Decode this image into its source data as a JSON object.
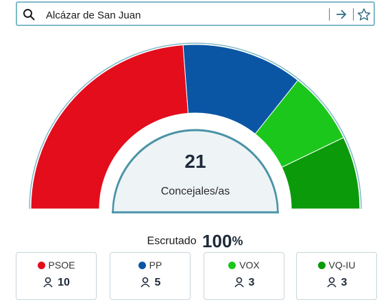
{
  "search": {
    "value": "Alcázar de San Juan",
    "search_icon": "search-icon",
    "go_icon": "arrow-right-icon",
    "favorite_icon": "star-icon"
  },
  "chart_data": {
    "type": "hemicycle",
    "total_seats": 21,
    "center_label": "Concejales/as",
    "series": [
      {
        "name": "PSOE",
        "value": 10,
        "color": "#e30d1c"
      },
      {
        "name": "PP",
        "value": 5,
        "color": "#0b56a4"
      },
      {
        "name": "VOX",
        "value": 3,
        "color": "#1bc71b"
      },
      {
        "name": "VQ-IU",
        "value": 3,
        "color": "#0a9a0a"
      }
    ]
  },
  "hemicycle": {
    "total": "21",
    "label": "Concejales/as"
  },
  "scrutiny": {
    "label": "Escrutado",
    "value": "100",
    "unit": "%"
  },
  "parties": [
    {
      "name": "PSOE",
      "seats": "10",
      "color": "#e30d1c"
    },
    {
      "name": "PP",
      "seats": "5",
      "color": "#0b56a4"
    },
    {
      "name": "VOX",
      "seats": "3",
      "color": "#1bc71b"
    },
    {
      "name": "VQ-IU",
      "seats": "3",
      "color": "#0a9a0a"
    }
  ]
}
